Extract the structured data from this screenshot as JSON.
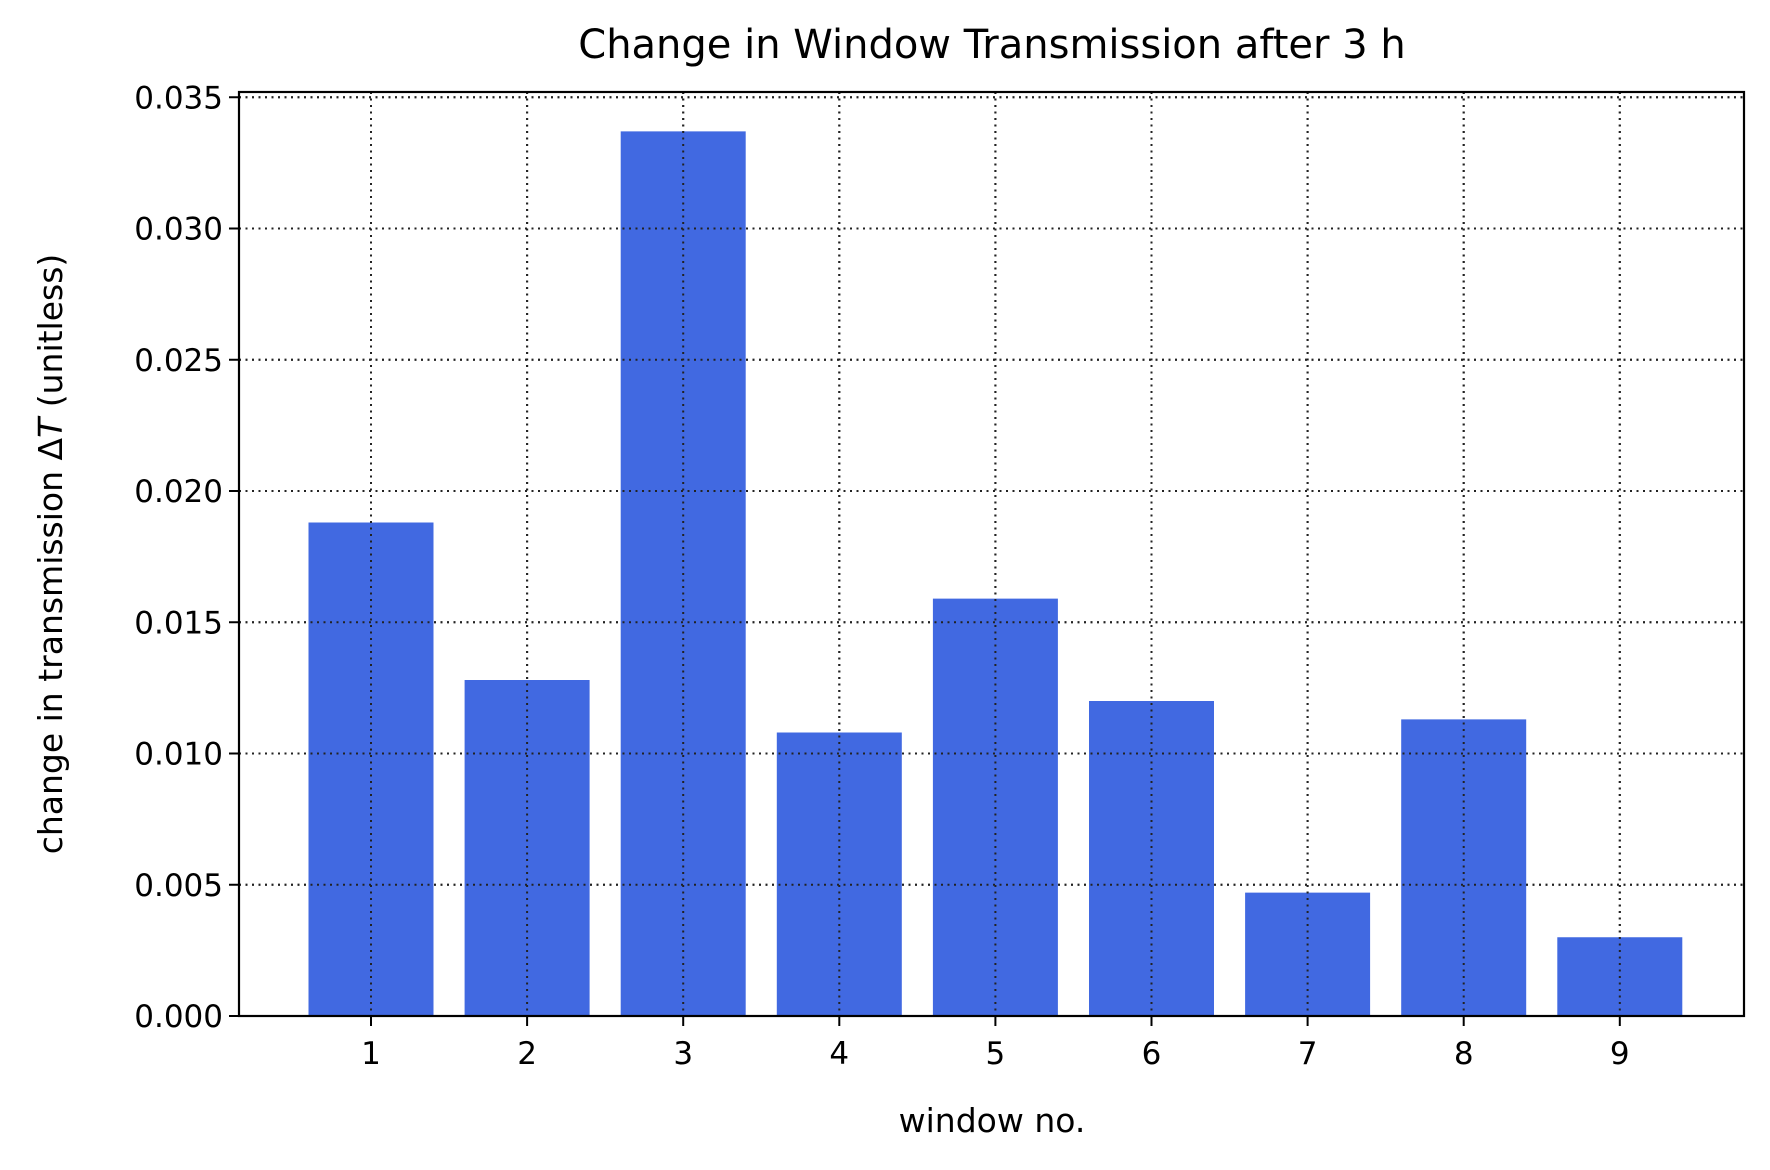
{
  "chart_data": {
    "type": "bar",
    "title": "Change in Window Transmission after 3 h",
    "xlabel": "window no.",
    "ylabel_prefix": "change in transmission Δ",
    "ylabel_var": "T",
    "ylabel_suffix": " (unitless)",
    "categories": [
      "1",
      "2",
      "3",
      "4",
      "5",
      "6",
      "7",
      "8",
      "9"
    ],
    "values": [
      0.0188,
      0.0128,
      0.0337,
      0.0108,
      0.0159,
      0.012,
      0.0047,
      0.0113,
      0.003
    ],
    "ylim": [
      0,
      0.0352
    ],
    "yticks": [
      "0.000",
      "0.005",
      "0.010",
      "0.015",
      "0.020",
      "0.025",
      "0.030",
      "0.035"
    ],
    "ytick_values": [
      0,
      0.005,
      0.01,
      0.015,
      0.02,
      0.025,
      0.03,
      0.035
    ],
    "grid": true,
    "grid_style": "dotted",
    "bar_color": "#4169e1",
    "legend": "none"
  }
}
